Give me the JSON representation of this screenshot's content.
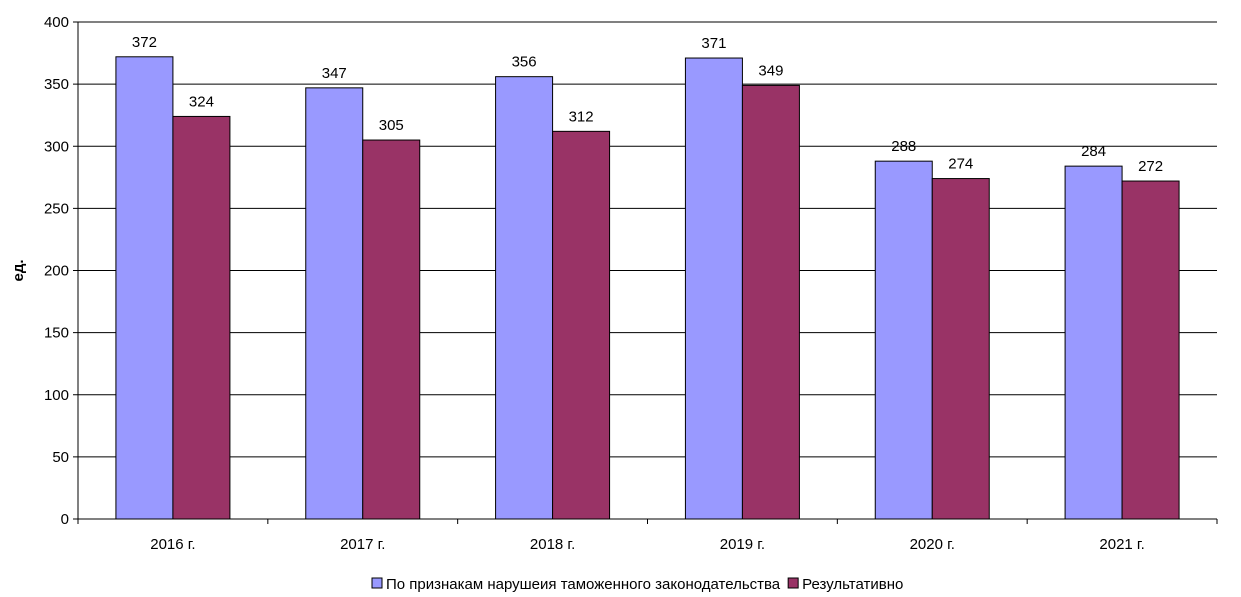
{
  "chart_data": {
    "type": "bar",
    "title": "",
    "xlabel": "",
    "ylabel": "ед.",
    "ylim": [
      0,
      400
    ],
    "yticks": [
      0,
      50,
      100,
      150,
      200,
      250,
      300,
      350,
      400
    ],
    "grid": true,
    "legend_position": "bottom",
    "categories": [
      "2016 г.",
      "2017 г.",
      "2018 г.",
      "2019 г.",
      "2020 г.",
      "2021 г."
    ],
    "series": [
      {
        "name": "По признакам нарушеия таможенного законодательства",
        "color": "#9999ff",
        "values": [
          372,
          347,
          356,
          371,
          288,
          284
        ]
      },
      {
        "name": "Результативно",
        "color": "#993366",
        "values": [
          324,
          305,
          312,
          349,
          274,
          272
        ]
      }
    ]
  }
}
